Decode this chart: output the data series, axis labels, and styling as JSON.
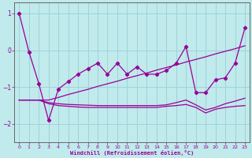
{
  "xlabel": "Windchill (Refroidissement éolien,°C)",
  "bg_color": "#c0eaec",
  "grid_color": "#9dd4d8",
  "line_color": "#990099",
  "xlim": [
    -0.5,
    23.5
  ],
  "ylim": [
    -2.5,
    1.3
  ],
  "yticks": [
    1,
    0,
    -1,
    -2
  ],
  "xticks": [
    0,
    1,
    2,
    3,
    4,
    5,
    6,
    7,
    8,
    9,
    10,
    11,
    12,
    13,
    14,
    15,
    16,
    17,
    18,
    19,
    20,
    21,
    22,
    23
  ],
  "x_data": [
    0,
    1,
    2,
    3,
    4,
    5,
    6,
    7,
    8,
    9,
    10,
    11,
    12,
    13,
    14,
    15,
    16,
    17,
    18,
    19,
    20,
    21,
    22,
    23
  ],
  "y_jagged": [
    1.0,
    -0.05,
    -0.9,
    -1.9,
    -1.05,
    -0.85,
    -0.65,
    -0.5,
    -0.35,
    -0.65,
    -0.35,
    -0.65,
    -0.45,
    -0.65,
    -0.65,
    -0.55,
    -0.35,
    0.1,
    -1.15,
    -1.15,
    -0.8,
    -0.75,
    -0.35,
    0.6
  ],
  "y_trend1": [
    -1.35,
    -1.35,
    -1.35,
    -1.35,
    -1.28,
    -1.2,
    -1.13,
    -1.06,
    -0.98,
    -0.91,
    -0.84,
    -0.76,
    -0.69,
    -0.62,
    -0.54,
    -0.47,
    -0.4,
    -0.32,
    -0.25,
    -0.18,
    -0.1,
    -0.03,
    0.04,
    0.12
  ],
  "y_trend2": [
    -1.35,
    -1.35,
    -1.35,
    -1.45,
    -1.5,
    -1.52,
    -1.54,
    -1.55,
    -1.55,
    -1.55,
    -1.55,
    -1.55,
    -1.55,
    -1.55,
    -1.55,
    -1.52,
    -1.5,
    -1.47,
    -1.55,
    -1.7,
    -1.6,
    -1.55,
    -1.52,
    -1.5
  ],
  "y_trend3": [
    -1.35,
    -1.35,
    -1.35,
    -1.42,
    -1.45,
    -1.47,
    -1.48,
    -1.49,
    -1.5,
    -1.5,
    -1.5,
    -1.5,
    -1.5,
    -1.5,
    -1.5,
    -1.48,
    -1.42,
    -1.35,
    -1.48,
    -1.62,
    -1.55,
    -1.45,
    -1.38,
    -1.3
  ]
}
